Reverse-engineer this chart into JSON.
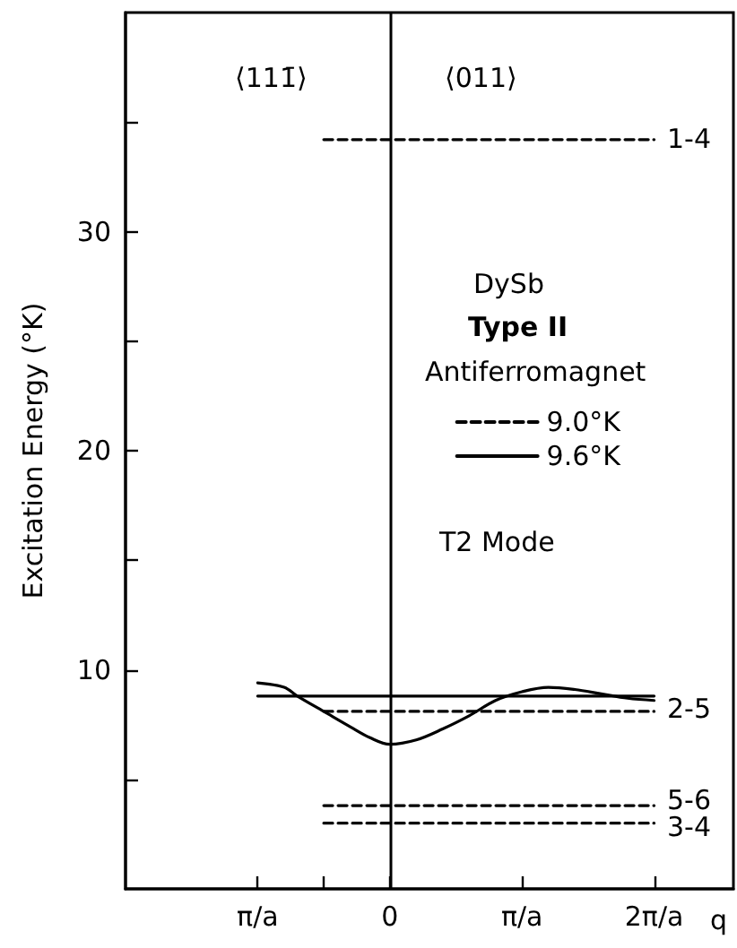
{
  "chart_data": {
    "type": "line",
    "xlabel": "q",
    "ylabel": "Excitation Energy (°K)",
    "xlim": [
      -2,
      2.6
    ],
    "ylim": [
      0,
      40
    ],
    "xticks": [
      {
        "value": -1,
        "label": "π/a"
      },
      {
        "value": -0.5,
        "label": null
      },
      0,
      {
        "value": 1,
        "label": "π/a"
      },
      {
        "value": 2,
        "label": "2π/a"
      }
    ],
    "yticks": [
      {
        "value": 5,
        "label": null
      },
      10,
      {
        "value": 15,
        "label": null
      },
      20,
      {
        "value": 25,
        "label": null
      },
      30,
      {
        "value": 35,
        "label": null
      }
    ],
    "series": [
      {
        "name": "9.0°K",
        "color": "#000000",
        "line_style": "dashed",
        "x": [
          -0.5,
          2
        ],
        "values": [
          34.2,
          34.2
        ]
      },
      {
        "color": "#000000",
        "line_style": "dashed",
        "x": [
          -0.5,
          2
        ],
        "values": [
          8.1,
          8.1
        ]
      },
      {
        "color": "#000000",
        "line_style": "dashed",
        "x": [
          -0.5,
          2
        ],
        "values": [
          3.8,
          3.8
        ]
      },
      {
        "color": "#000000",
        "line_style": "dashed",
        "x": [
          -0.5,
          2
        ],
        "values": [
          3.0,
          3.0
        ]
      },
      {
        "name": "9.6°K",
        "color": "#000000",
        "line_style": "solid",
        "x": [
          -1,
          2
        ],
        "values": [
          8.8,
          8.8
        ]
      },
      {
        "color": "#000000",
        "line_style": "solid",
        "x": [
          -1,
          -0.8,
          -0.7,
          -0.5,
          -0.3,
          -0.15,
          0,
          0.2,
          0.4,
          0.6,
          0.8,
          1.0,
          1.2,
          1.4,
          1.6,
          1.8,
          2.0
        ],
        "values": [
          9.4,
          9.2,
          8.8,
          8.1,
          7.4,
          6.9,
          6.6,
          6.8,
          7.3,
          7.9,
          8.6,
          9.0,
          9.2,
          9.1,
          8.9,
          8.7,
          8.6
        ]
      }
    ],
    "ref_lines": [
      {
        "axis": "x",
        "value": 0,
        "color": "#000000",
        "line_style": "solid"
      }
    ],
    "annotations": [
      "⟨111̄⟩",
      "⟨011⟩",
      "DySb",
      "Type II",
      "Antiferromagnet",
      "T2 Mode",
      "1-4",
      "2-5",
      "5-6",
      "3-4"
    ],
    "legend": "top right",
    "marker": "none",
    "grid": false
  }
}
